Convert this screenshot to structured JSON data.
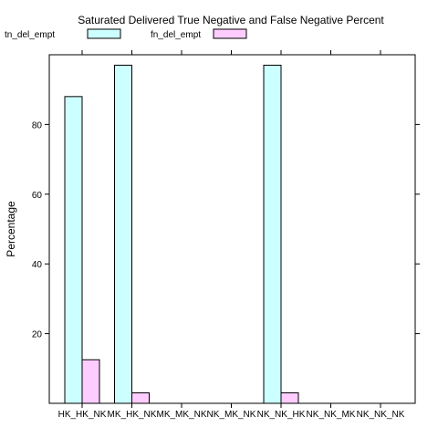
{
  "chart_data": {
    "type": "bar",
    "title": "Saturated Delivered True Negative and False Negative Percent",
    "xlabel": "",
    "ylabel": "Percentage",
    "categories": [
      "HK_HK_NK",
      "MK_HK_NK",
      "MK_MK_NK",
      "NK_MK_NK",
      "NK_NK_HK",
      "NK_NK_MK",
      "NK_NK_NK"
    ],
    "series": [
      {
        "name": "tn_del_empt",
        "color": "#ccffff",
        "values": [
          88,
          97,
          0,
          0,
          97,
          0,
          0
        ]
      },
      {
        "name": "fn_del_empt",
        "color": "#ffccff",
        "values": [
          12.5,
          3,
          0,
          0,
          3,
          0,
          0
        ]
      }
    ],
    "ylim": [
      0,
      100
    ],
    "yticks": [
      20,
      40,
      60,
      80
    ],
    "grid": false,
    "legend": "top-left"
  }
}
